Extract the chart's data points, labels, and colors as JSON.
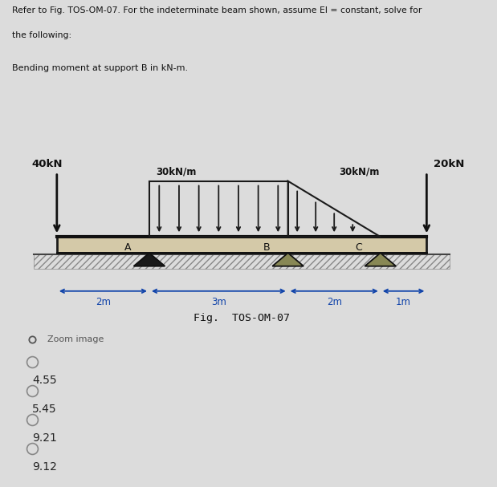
{
  "title_line1": "Refer to Fig. TOS-OM-07. For the indeterminate beam shown, assume El = constant, solve for",
  "title_line2": "the following:",
  "subtitle": "Bending moment at support B in kN-m.",
  "fig_label": "Fig.  TOS-OM-07",
  "load_40kN": "40kN",
  "load_20kN": "20kN",
  "load_udl1": "30kN/m",
  "load_udl2": "30kN/m",
  "support_A": "A",
  "support_B": "B",
  "support_C": "C",
  "dim_2m_left": "2m",
  "dim_3m": "3m",
  "dim_2m_right": "2m",
  "dim_1m": "1m",
  "zoom_label": "Zoom image",
  "choices": [
    "4.55",
    "5.45",
    "9.21",
    "9.12"
  ],
  "bg_color": "#dcdcdc",
  "beam_face_color": "#d4c9a8",
  "beam_edge_color": "#1a1a1a",
  "hatch_color": "#888888",
  "text_color": "#111111",
  "dim_color": "#1144aa",
  "support_A_color": "#1a1a1a",
  "support_B_color": "#888855",
  "support_C_color": "#888855",
  "udl_color": "#1a1a1a",
  "arrow_lw": 1.5,
  "point_load_lw": 2.0
}
